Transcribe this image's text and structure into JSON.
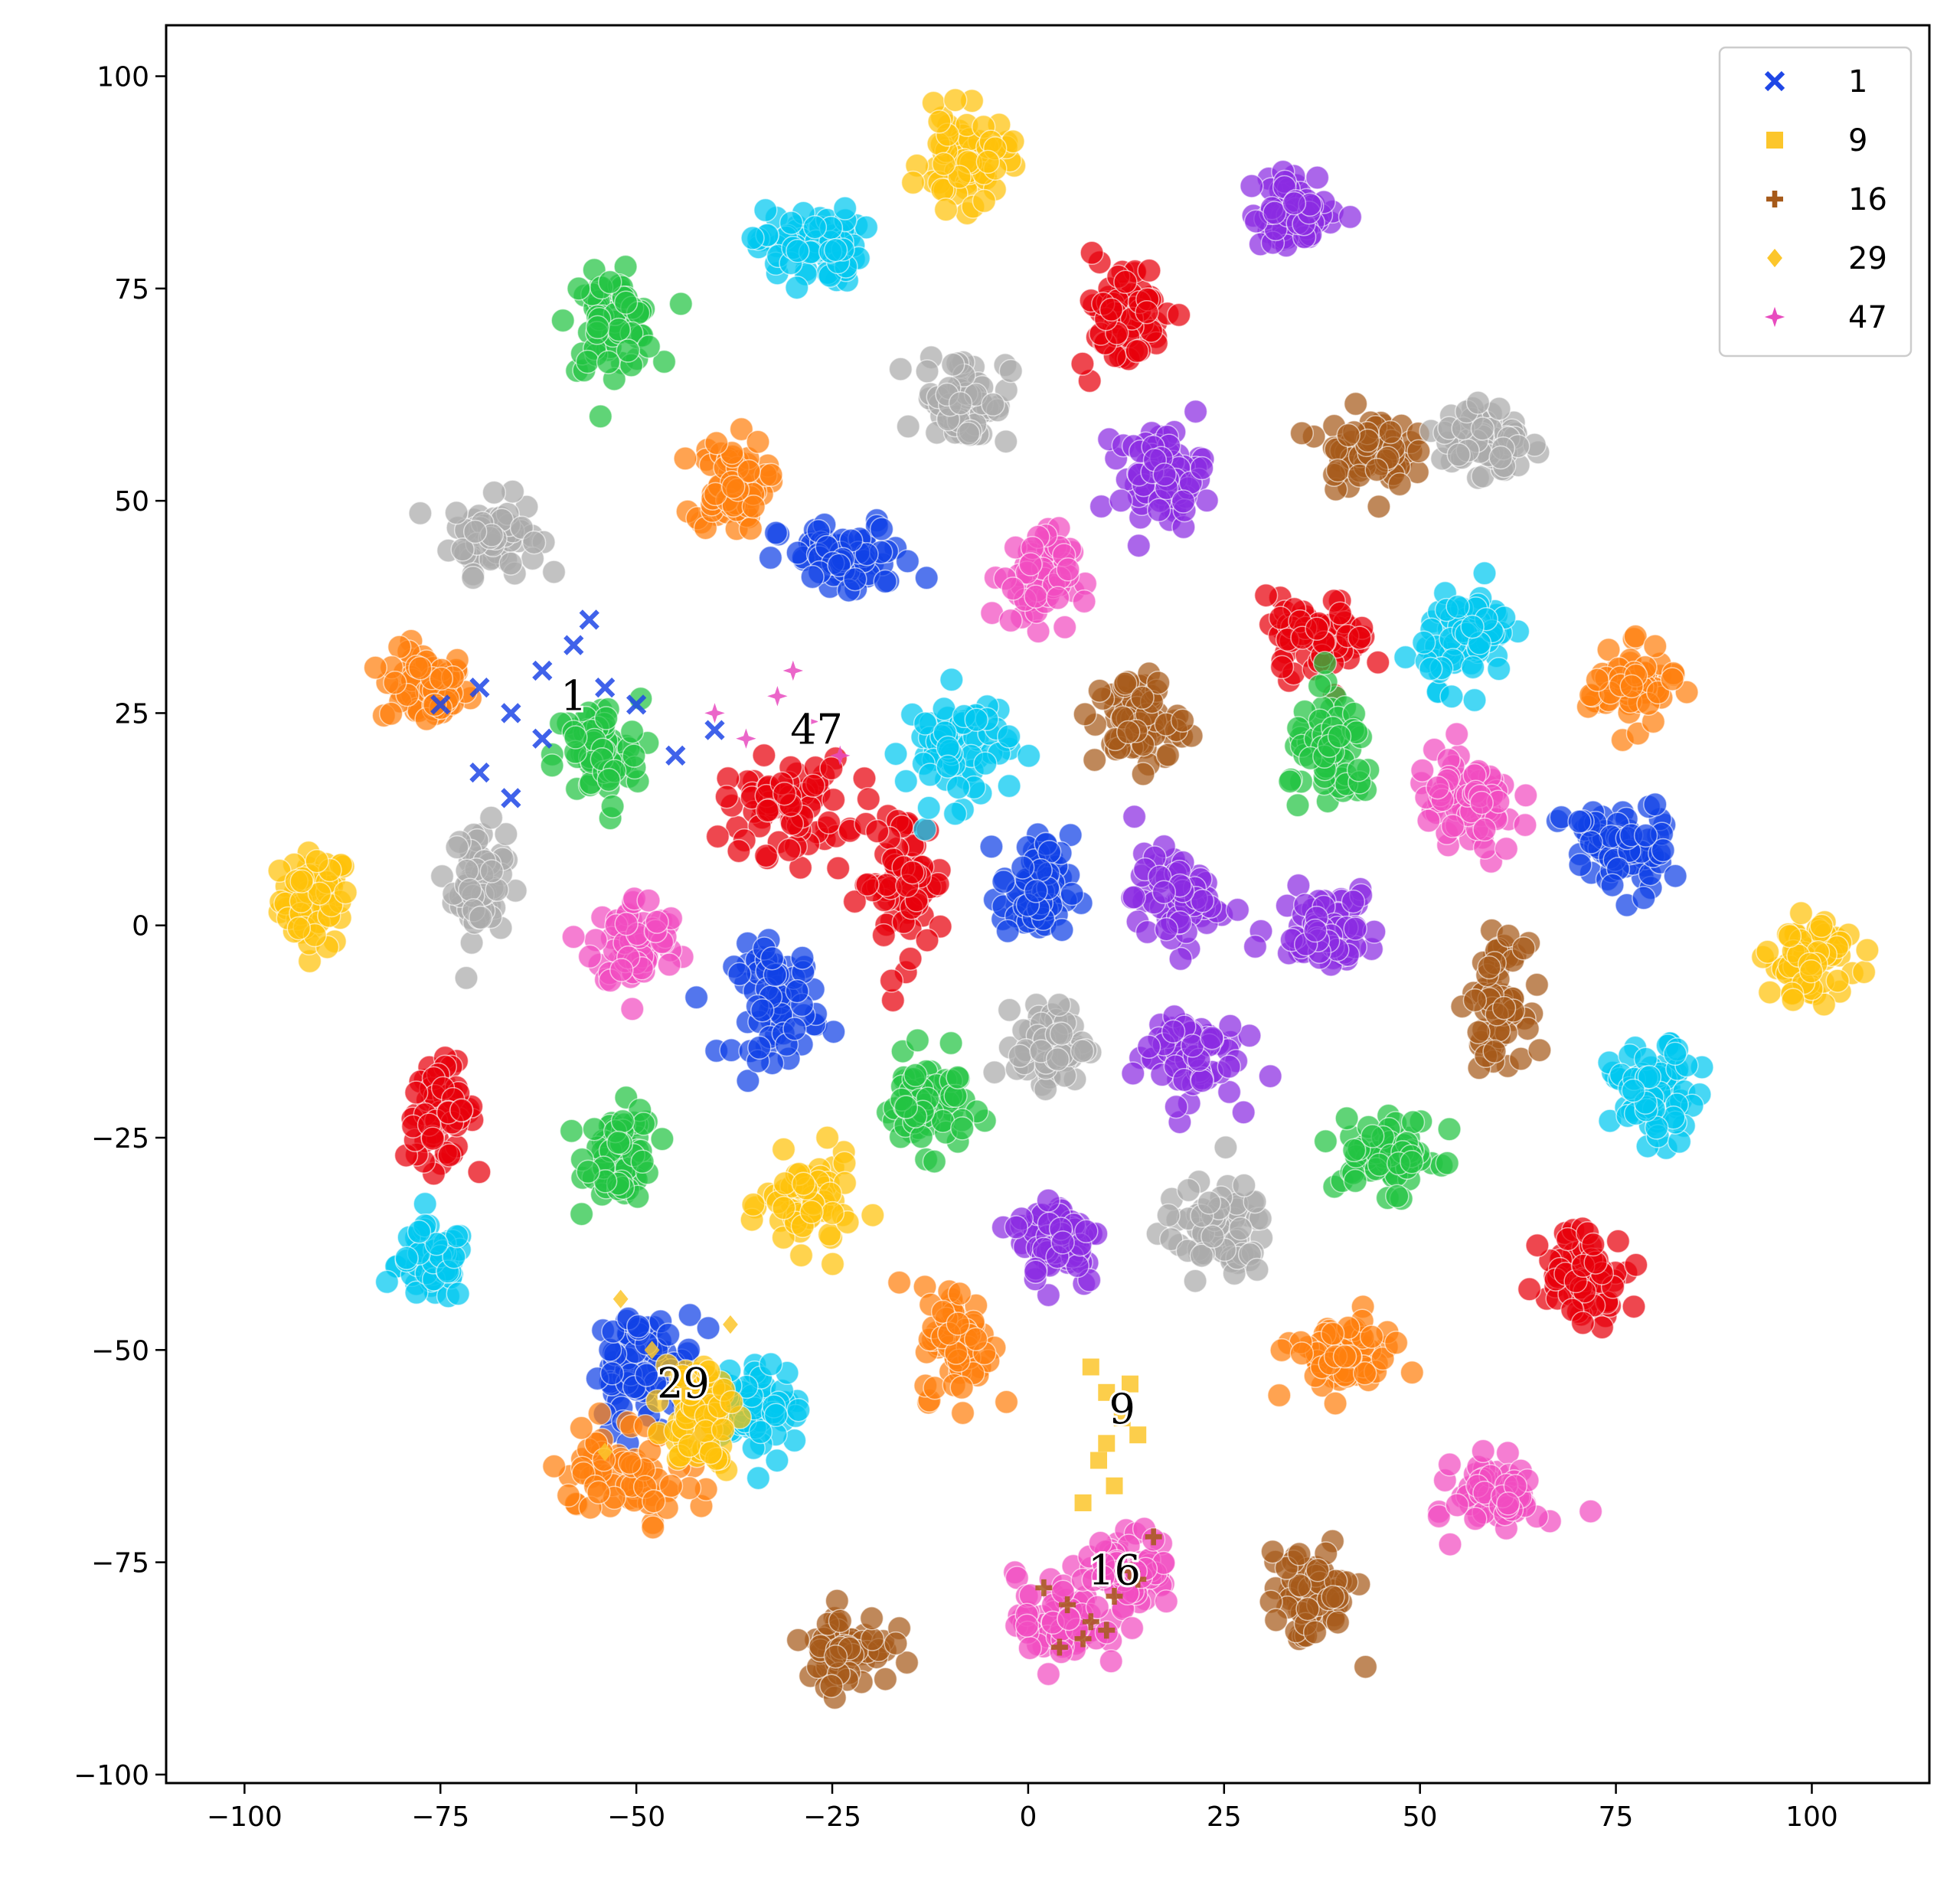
{
  "chart_data": {
    "type": "scatter",
    "title": "",
    "xlabel": "",
    "ylabel": "",
    "xlim": [
      -110,
      115
    ],
    "ylim": [
      -101,
      106
    ],
    "xticks": [
      -100,
      -75,
      -50,
      -25,
      0,
      25,
      50,
      75,
      100
    ],
    "yticks": [
      -100,
      -75,
      -50,
      -25,
      0,
      25,
      50,
      75,
      100
    ],
    "xtick_labels": [
      "−100",
      "−75",
      "−50",
      "−25",
      "0",
      "25",
      "50",
      "75",
      "100"
    ],
    "ytick_labels": [
      "−100",
      "−75",
      "−50",
      "−25",
      "0",
      "25",
      "50",
      "75",
      "100"
    ],
    "grid": false,
    "legend_position": "top-right",
    "legend": [
      {
        "label": "1",
        "marker": "x",
        "color": "#1f47e6"
      },
      {
        "label": "9",
        "marker": "square",
        "color": "#fcc62b"
      },
      {
        "label": "16",
        "marker": "plus",
        "color": "#a65a1a"
      },
      {
        "label": "29",
        "marker": "diamond",
        "color": "#fcc62b"
      },
      {
        "label": "47",
        "marker": "star",
        "color": "#e84bbf"
      }
    ],
    "annotations": [
      {
        "text": "1",
        "x": -58,
        "y": 27
      },
      {
        "text": "47",
        "x": -27,
        "y": 23
      },
      {
        "text": "29",
        "x": -44,
        "y": -54
      },
      {
        "text": "9",
        "x": 12,
        "y": -57
      },
      {
        "text": "16",
        "x": 11,
        "y": -76
      }
    ],
    "clusters": [
      {
        "x": -91,
        "y": 3,
        "rx": 4,
        "ry": 5,
        "color": "#ffc20a"
      },
      {
        "x": -77,
        "y": 28,
        "rx": 5,
        "ry": 4,
        "color": "#ff7f0e"
      },
      {
        "x": -68,
        "y": 46,
        "rx": 5,
        "ry": 4,
        "color": "#aaaaaa"
      },
      {
        "x": -70,
        "y": 5,
        "rx": 3,
        "ry": 6,
        "color": "#aaaaaa"
      },
      {
        "x": -75,
        "y": -22,
        "rx": 4,
        "ry": 5,
        "color": "#e8000b"
      },
      {
        "x": -76,
        "y": -40,
        "rx": 4,
        "ry": 4,
        "color": "#00c8f0"
      },
      {
        "x": -52,
        "y": -27,
        "rx": 4,
        "ry": 5,
        "color": "#23c442"
      },
      {
        "x": -53,
        "y": 71,
        "rx": 5,
        "ry": 5,
        "color": "#23c442"
      },
      {
        "x": -55,
        "y": 20,
        "rx": 5,
        "ry": 6,
        "color": "#23c442"
      },
      {
        "x": -50,
        "y": -2,
        "rx": 5,
        "ry": 5,
        "color": "#f14cc1"
      },
      {
        "x": -38,
        "y": 52,
        "rx": 4,
        "ry": 5,
        "color": "#ff7f0e"
      },
      {
        "x": -28,
        "y": 80,
        "rx": 6,
        "ry": 4,
        "color": "#00c8f0"
      },
      {
        "x": -23,
        "y": 43,
        "rx": 8,
        "ry": 4,
        "color": "#1041e6"
      },
      {
        "x": -31,
        "y": 14,
        "rx": 7,
        "ry": 5,
        "color": "#e8000b"
      },
      {
        "x": -16,
        "y": 5,
        "rx": 5,
        "ry": 8,
        "color": "#e8000b"
      },
      {
        "x": -32,
        "y": -9,
        "rx": 5,
        "ry": 6,
        "color": "#1041e6"
      },
      {
        "x": -9,
        "y": 21,
        "rx": 6,
        "ry": 6,
        "color": "#00c8f0"
      },
      {
        "x": -13,
        "y": -21,
        "rx": 5,
        "ry": 5,
        "color": "#23c442"
      },
      {
        "x": -28,
        "y": -33,
        "rx": 5,
        "ry": 5,
        "color": "#ffc20a"
      },
      {
        "x": -8,
        "y": 90,
        "rx": 5,
        "ry": 5,
        "color": "#ffc20a"
      },
      {
        "x": -8,
        "y": 62,
        "rx": 5,
        "ry": 5,
        "color": "#aaaaaa"
      },
      {
        "x": 1,
        "y": 41,
        "rx": 4,
        "ry": 5,
        "color": "#f14cc1"
      },
      {
        "x": 1,
        "y": 4,
        "rx": 4,
        "ry": 6,
        "color": "#1041e6"
      },
      {
        "x": 3,
        "y": -14,
        "rx": 4,
        "ry": 4,
        "color": "#aaaaaa"
      },
      {
        "x": 4,
        "y": -37,
        "rx": 5,
        "ry": 5,
        "color": "#8b2be2"
      },
      {
        "x": -9,
        "y": -49,
        "rx": 4,
        "ry": 6,
        "color": "#ff7f0e"
      },
      {
        "x": -23,
        "y": -85,
        "rx": 5,
        "ry": 4,
        "color": "#a65a1a"
      },
      {
        "x": 12,
        "y": 72,
        "rx": 5,
        "ry": 6,
        "color": "#e8000b"
      },
      {
        "x": 17,
        "y": 53,
        "rx": 5,
        "ry": 5,
        "color": "#8b2be2"
      },
      {
        "x": 14,
        "y": 24,
        "rx": 5,
        "ry": 5,
        "color": "#a65a1a"
      },
      {
        "x": 19,
        "y": 3,
        "rx": 5,
        "ry": 5,
        "color": "#8b2be2"
      },
      {
        "x": 20,
        "y": -15,
        "rx": 6,
        "ry": 5,
        "color": "#8b2be2"
      },
      {
        "x": 24,
        "y": -36,
        "rx": 6,
        "ry": 5,
        "color": "#aaaaaa"
      },
      {
        "x": 4,
        "y": -82,
        "rx": 5,
        "ry": 5,
        "color": "#f14cc1"
      },
      {
        "x": 13,
        "y": -76,
        "rx": 5,
        "ry": 4,
        "color": "#f14cc1"
      },
      {
        "x": 34,
        "y": 84,
        "rx": 5,
        "ry": 4,
        "color": "#8b2be2"
      },
      {
        "x": 43,
        "y": 56,
        "rx": 5,
        "ry": 4,
        "color": "#a65a1a"
      },
      {
        "x": 58,
        "y": 57,
        "rx": 5,
        "ry": 4,
        "color": "#aaaaaa"
      },
      {
        "x": 37,
        "y": 34,
        "rx": 6,
        "ry": 4,
        "color": "#e8000b"
      },
      {
        "x": 56,
        "y": 34,
        "rx": 5,
        "ry": 5,
        "color": "#00c8f0"
      },
      {
        "x": 39,
        "y": 20,
        "rx": 5,
        "ry": 6,
        "color": "#23c442"
      },
      {
        "x": 56,
        "y": 14,
        "rx": 6,
        "ry": 6,
        "color": "#f14cc1"
      },
      {
        "x": 38,
        "y": 0,
        "rx": 6,
        "ry": 4,
        "color": "#8b2be2"
      },
      {
        "x": 60,
        "y": -9,
        "rx": 3,
        "ry": 6,
        "color": "#a65a1a"
      },
      {
        "x": 46,
        "y": -27,
        "rx": 6,
        "ry": 4,
        "color": "#23c442"
      },
      {
        "x": 40,
        "y": -51,
        "rx": 6,
        "ry": 4,
        "color": "#ff7f0e"
      },
      {
        "x": 36,
        "y": -79,
        "rx": 5,
        "ry": 5,
        "color": "#a65a1a"
      },
      {
        "x": 60,
        "y": -67,
        "rx": 5,
        "ry": 4,
        "color": "#f14cc1"
      },
      {
        "x": 77,
        "y": 28,
        "rx": 5,
        "ry": 4,
        "color": "#ff7f0e"
      },
      {
        "x": 75,
        "y": 9,
        "rx": 6,
        "ry": 5,
        "color": "#1041e6"
      },
      {
        "x": 100,
        "y": -4,
        "rx": 5,
        "ry": 4,
        "color": "#ffc20a"
      },
      {
        "x": 80,
        "y": -20,
        "rx": 5,
        "ry": 5,
        "color": "#00c8f0"
      },
      {
        "x": 71,
        "y": -41,
        "rx": 5,
        "ry": 5,
        "color": "#e8000b"
      },
      {
        "x": -49,
        "y": -52,
        "rx": 6,
        "ry": 6,
        "color": "#1041e6"
      },
      {
        "x": -51,
        "y": -64,
        "rx": 8,
        "ry": 5,
        "color": "#ff7f0e"
      },
      {
        "x": -35,
        "y": -57,
        "rx": 5,
        "ry": 5,
        "color": "#00c8f0"
      },
      {
        "x": -42,
        "y": -57,
        "rx": 4,
        "ry": 6,
        "color": "#ffc20a"
      }
    ],
    "highlight_series": [
      {
        "name": "1",
        "marker": "x",
        "color": "#1f47e6",
        "x": [
          -75,
          -70,
          -66,
          -62,
          -58,
          -54,
          -50,
          -70,
          -66,
          -62,
          -56,
          -45,
          -40
        ],
        "y": [
          26,
          28,
          25,
          30,
          33,
          28,
          26,
          18,
          15,
          22,
          36,
          20,
          23
        ]
      },
      {
        "name": "47",
        "marker": "star",
        "color": "#e84bbf",
        "x": [
          -36,
          -32,
          -28,
          -24,
          -40,
          -30
        ],
        "y": [
          22,
          27,
          24,
          20,
          25,
          30
        ]
      },
      {
        "name": "29",
        "marker": "diamond",
        "color": "#fcc62b",
        "x": [
          -52,
          -48,
          -44,
          -42,
          -38,
          -54
        ],
        "y": [
          -44,
          -50,
          -55,
          -60,
          -47,
          -62
        ]
      },
      {
        "name": "9",
        "marker": "square",
        "color": "#fcc62b",
        "x": [
          8,
          10,
          12,
          14,
          9,
          11,
          13,
          7,
          10
        ],
        "y": [
          -52,
          -55,
          -58,
          -60,
          -63,
          -66,
          -54,
          -68,
          -61
        ]
      },
      {
        "name": "16",
        "marker": "plus",
        "color": "#a65a1a",
        "x": [
          2,
          5,
          8,
          11,
          14,
          4,
          7,
          10,
          13,
          16
        ],
        "y": [
          -78,
          -80,
          -82,
          -79,
          -77,
          -85,
          -84,
          -83,
          -76,
          -72
        ]
      }
    ]
  }
}
